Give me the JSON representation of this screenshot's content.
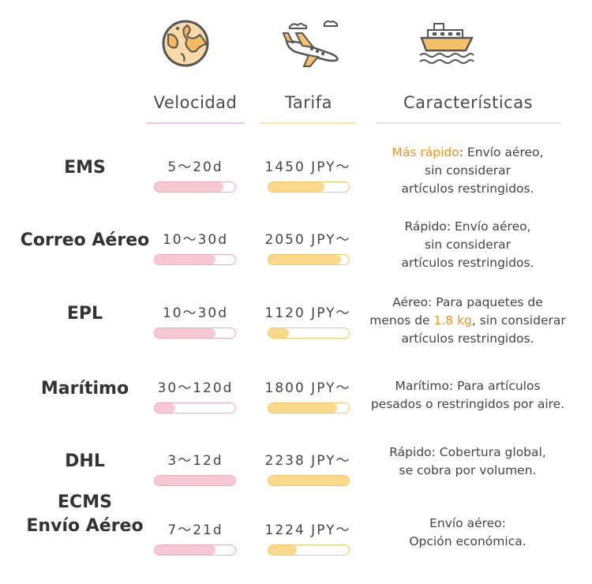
{
  "icons": {
    "speed": "globe-icon",
    "price": "airplane-icon",
    "features": "ship-icon"
  },
  "headers": {
    "speed": "Velocidad",
    "price": "Tarifa",
    "features": "Características"
  },
  "colors": {
    "speed_bar": "#f5c8d3",
    "price_bar": "#fbd98a",
    "highlight": "#f0921e"
  },
  "rows": [
    {
      "name": "EMS",
      "speed": "5～20d",
      "price": "1450 JPY～",
      "speed_fill": 0.85,
      "price_fill": 0.7,
      "desc_lines": [
        {
          "hl": "Más rápido",
          "text": ": Envío aéreo,"
        },
        {
          "text": "sin considerar"
        },
        {
          "text": "artículos restringidos."
        }
      ]
    },
    {
      "name": "Correo Aéreo",
      "speed": "10～30d",
      "price": "2050 JPY～",
      "speed_fill": 0.75,
      "price_fill": 0.9,
      "desc_lines": [
        {
          "text": "Rápido: Envío aéreo,"
        },
        {
          "text": "sin considerar"
        },
        {
          "text": "artículos restringidos."
        }
      ]
    },
    {
      "name": "EPL",
      "speed": "10～30d",
      "price": "1120 JPY～",
      "speed_fill": 0.75,
      "price_fill": 0.25,
      "desc_lines": [
        {
          "text": "Aéreo: Para paquetes de"
        },
        {
          "text": "menos de ",
          "hl": "1.8 kg",
          "text2": ", sin considerar"
        },
        {
          "text": "artículos restringidos."
        }
      ]
    },
    {
      "name": "Marítimo",
      "speed": "30～120d",
      "price": "1800 JPY～",
      "speed_fill": 0.25,
      "price_fill": 0.85,
      "desc_lines": [
        {
          "text": "Marítimo: Para artículos"
        },
        {
          "text": "pesados o restringidos por aire."
        }
      ]
    },
    {
      "name": "DHL",
      "speed": "3～12d",
      "price": "2238 JPY～",
      "speed_fill": 1.0,
      "price_fill": 1.0,
      "desc_lines": [
        {
          "text": "Rápido: Cobertura global,"
        },
        {
          "text": "se cobra por volumen."
        }
      ]
    },
    {
      "name": "ECMS\nEnvío Aéreo",
      "speed": "7～21d",
      "price": "1224 JPY～",
      "speed_fill": 0.75,
      "price_fill": 0.35,
      "desc_lines": [
        {
          "text": "Envío aéreo:"
        },
        {
          "text": "Opción económica."
        }
      ]
    }
  ]
}
